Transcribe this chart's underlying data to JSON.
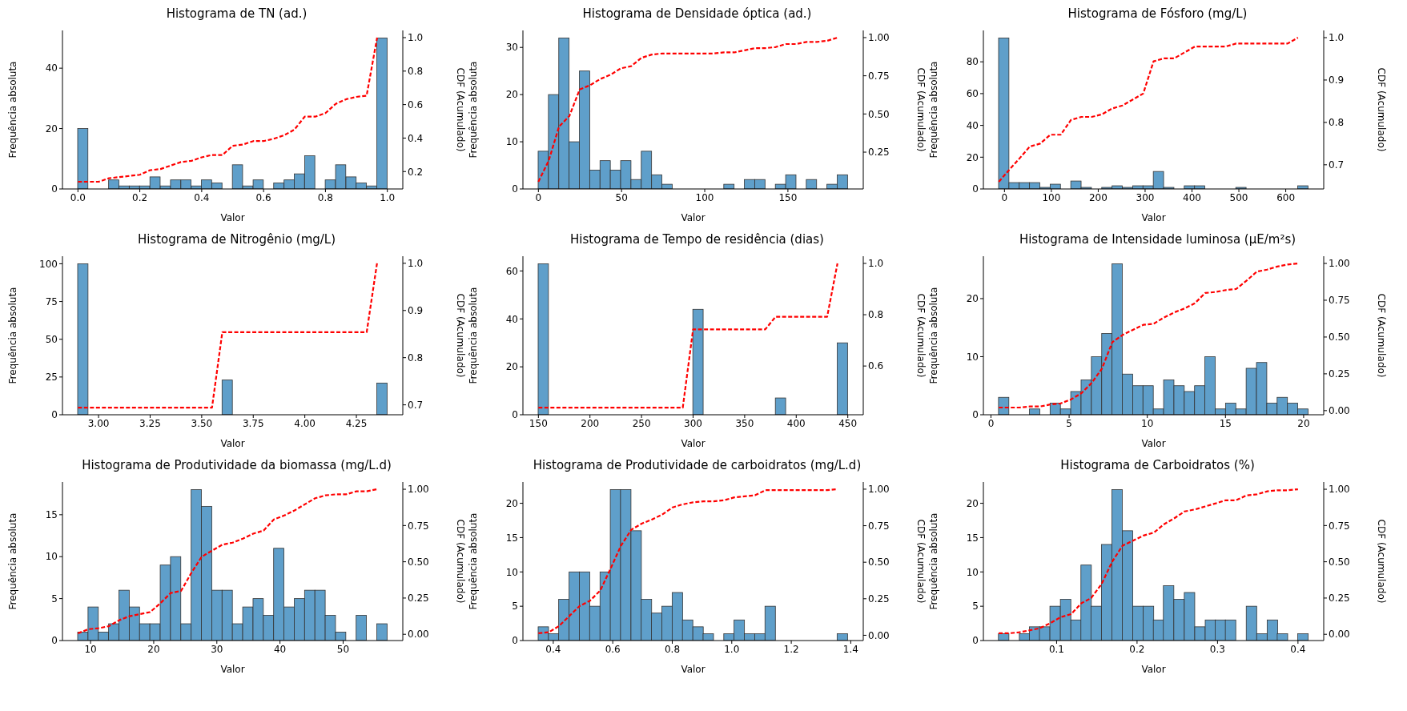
{
  "chart_data": [
    {
      "type": "histogram",
      "title": "Histograma de TN (ad.)",
      "xlabel": "Valor",
      "ylabel": "Frequência absoluta",
      "y2label": "CDF (Acumulado)",
      "color": "#5f9fca",
      "bins": [
        0,
        0.033,
        0.067,
        0.1,
        0.133,
        0.167,
        0.2,
        0.233,
        0.267,
        0.3,
        0.333,
        0.367,
        0.4,
        0.433,
        0.467,
        0.5,
        0.533,
        0.567,
        0.6,
        0.633,
        0.667,
        0.7,
        0.733,
        0.767,
        0.8,
        0.833,
        0.867,
        0.9,
        0.933,
        0.967,
        1
      ],
      "values": [
        20,
        0,
        0,
        3,
        1,
        1,
        1,
        4,
        1,
        3,
        3,
        1,
        3,
        2,
        0,
        8,
        1,
        3,
        0,
        2,
        3,
        5,
        11,
        0,
        3,
        8,
        4,
        2,
        1,
        50
      ],
      "xlim": [
        -0.05,
        1.05
      ],
      "xticks": [
        {
          "value": 0,
          "label": "0.0"
        },
        0.2,
        0.4,
        0.6,
        0.8,
        {
          "value": 1,
          "label": "1.0"
        }
      ],
      "ylim": [
        0,
        52.5
      ],
      "yticks": [
        0,
        20,
        40
      ],
      "y2lim": [
        0.096,
        1.043
      ],
      "y2ticks": [
        0.2,
        0.4,
        0.6,
        0.8,
        {
          "value": 1,
          "label": "1.0"
        }
      ],
      "series": [
        {
          "type": "line",
          "axis": "y2",
          "color": "#ff0000",
          "line_style": "dashed",
          "x": [
            0,
            0.033,
            0.067,
            0.1,
            0.133,
            0.167,
            0.2,
            0.233,
            0.267,
            0.3,
            0.333,
            0.367,
            0.4,
            0.433,
            0.467,
            0.5,
            0.533,
            0.567,
            0.6,
            0.633,
            0.667,
            0.7,
            0.733,
            0.767,
            0.8,
            0.833,
            0.867,
            0.9,
            0.933,
            0.967
          ],
          "values": [
            0.139,
            0.139,
            0.139,
            0.16,
            0.167,
            0.174,
            0.181,
            0.208,
            0.215,
            0.236,
            0.257,
            0.264,
            0.285,
            0.299,
            0.299,
            0.354,
            0.361,
            0.382,
            0.382,
            0.396,
            0.417,
            0.451,
            0.528,
            0.528,
            0.549,
            0.604,
            0.632,
            0.646,
            0.653,
            1
          ]
        }
      ]
    },
    {
      "type": "histogram",
      "title": "Histograma de Densidade óptica (ad.)",
      "xlabel": "Valor",
      "ylabel": "Frequência absoluta",
      "y2label": "CDF (Acumulado)",
      "color": "#5f9fca",
      "bins": [
        0,
        6.2,
        12.4,
        18.6,
        24.8,
        31,
        37.2,
        43.4,
        49.6,
        55.8,
        62,
        68.2,
        74.4,
        80.6,
        86.8,
        93,
        99.2,
        105.4,
        111.6,
        117.8,
        124,
        130.2,
        136.4,
        142.6,
        148.8,
        155,
        161.2,
        167.4,
        173.6,
        179.8,
        186
      ],
      "values": [
        8,
        20,
        32,
        10,
        25,
        4,
        6,
        4,
        6,
        2,
        8,
        3,
        1,
        0,
        0,
        0,
        0,
        0,
        1,
        0,
        2,
        2,
        0,
        1,
        3,
        0,
        2,
        0,
        1,
        3
      ],
      "xlim": [
        -9.3,
        195.3
      ],
      "xticks": [
        0,
        50,
        100,
        150
      ],
      "ylim": [
        0,
        33.6
      ],
      "yticks": [
        0,
        10,
        20,
        30
      ],
      "y2lim": [
        0.009,
        1.047
      ],
      "y2ticks": [
        0.25,
        {
          "value": 0.5,
          "label": "0.50"
        },
        0.75,
        {
          "value": 1,
          "label": "1.00"
        }
      ],
      "series": [
        {
          "type": "line",
          "axis": "y2",
          "color": "#ff0000",
          "line_style": "dashed",
          "x": [
            0,
            6.2,
            12.4,
            18.6,
            24.8,
            31,
            37.2,
            43.4,
            49.6,
            55.8,
            62,
            68.2,
            74.4,
            80.6,
            86.8,
            93,
            99.2,
            105.4,
            111.6,
            117.8,
            124,
            130.2,
            136.4,
            142.6,
            148.8,
            155,
            161.2,
            167.4,
            173.6,
            179.8
          ],
          "values": [
            0.056,
            0.194,
            0.417,
            0.486,
            0.66,
            0.688,
            0.729,
            0.757,
            0.799,
            0.813,
            0.868,
            0.889,
            0.896,
            0.896,
            0.896,
            0.896,
            0.896,
            0.896,
            0.903,
            0.903,
            0.917,
            0.931,
            0.931,
            0.938,
            0.958,
            0.958,
            0.972,
            0.972,
            0.979,
            1
          ]
        }
      ]
    },
    {
      "type": "histogram",
      "title": "Histograma de Fósforo (mg/L)",
      "xlabel": "Valor",
      "ylabel": "Frequência absoluta",
      "y2label": "CDF (Acumulado)",
      "color": "#5f9fca",
      "bins": [
        -12,
        10,
        32,
        54,
        76,
        98,
        120,
        142,
        164,
        186,
        208,
        230,
        252,
        274,
        296,
        318,
        340,
        362,
        384,
        406,
        428,
        450,
        472,
        494,
        516,
        538,
        560,
        582,
        604,
        626,
        648
      ],
      "values": [
        95,
        4,
        4,
        4,
        1,
        3,
        0,
        5,
        1,
        0,
        1,
        2,
        1,
        2,
        2,
        11,
        1,
        0,
        2,
        2,
        0,
        0,
        0,
        1,
        0,
        0,
        0,
        0,
        0,
        2
      ],
      "xlim": [
        -45,
        681
      ],
      "xticks": [
        0,
        100,
        200,
        300,
        400,
        500,
        600
      ],
      "ylim": [
        0,
        99.75
      ],
      "yticks": [
        0,
        20,
        40,
        60,
        80
      ],
      "y2lim": [
        0.643,
        1.017
      ],
      "y2ticks": [
        0.7,
        0.8,
        0.9,
        {
          "value": 1,
          "label": "1.0"
        }
      ],
      "series": [
        {
          "type": "line",
          "axis": "y2",
          "color": "#ff0000",
          "line_style": "dashed",
          "x": [
            -12,
            10,
            32,
            54,
            76,
            98,
            120,
            142,
            164,
            186,
            208,
            230,
            252,
            274,
            296,
            318,
            340,
            362,
            384,
            406,
            428,
            450,
            472,
            494,
            516,
            538,
            560,
            582,
            604,
            626
          ],
          "values": [
            0.66,
            0.688,
            0.715,
            0.743,
            0.75,
            0.771,
            0.771,
            0.806,
            0.813,
            0.813,
            0.819,
            0.833,
            0.84,
            0.854,
            0.868,
            0.944,
            0.951,
            0.951,
            0.965,
            0.979,
            0.979,
            0.979,
            0.979,
            0.986,
            0.986,
            0.986,
            0.986,
            0.986,
            0.986,
            1
          ]
        }
      ]
    },
    {
      "type": "histogram",
      "title": "Histograma de Nitrogênio (mg/L)",
      "xlabel": "Valor",
      "ylabel": "Frequência absoluta",
      "y2label": "CDF (Acumulado)",
      "color": "#5f9fca",
      "bins": [
        2.9,
        2.95,
        3,
        3.05,
        3.1,
        3.15,
        3.2,
        3.25,
        3.3,
        3.35,
        3.4,
        3.45,
        3.5,
        3.55,
        3.6,
        3.65,
        3.7,
        3.75,
        3.8,
        3.85,
        3.9,
        3.95,
        4,
        4.05,
        4.1,
        4.15,
        4.2,
        4.25,
        4.3,
        4.35,
        4.4
      ],
      "values": [
        100,
        0,
        0,
        0,
        0,
        0,
        0,
        0,
        0,
        0,
        0,
        0,
        0,
        0,
        23,
        0,
        0,
        0,
        0,
        0,
        0,
        0,
        0,
        0,
        0,
        0,
        0,
        0,
        0,
        21
      ],
      "xlim": [
        2.825,
        4.475
      ],
      "xticks": [
        {
          "value": 3,
          "label": "3.00"
        },
        3.25,
        {
          "value": 3.5,
          "label": "3.50"
        },
        3.75,
        {
          "value": 4,
          "label": "4.00"
        },
        4.25
      ],
      "ylim": [
        0,
        105
      ],
      "yticks": [
        0,
        25,
        50,
        75,
        100
      ],
      "y2lim": [
        0.679,
        1.015
      ],
      "y2ticks": [
        0.7,
        0.8,
        0.9,
        {
          "value": 1,
          "label": "1.0"
        }
      ],
      "series": [
        {
          "type": "line",
          "axis": "y2",
          "color": "#ff0000",
          "line_style": "dashed",
          "x": [
            2.9,
            2.95,
            3,
            3.05,
            3.1,
            3.15,
            3.2,
            3.25,
            3.3,
            3.35,
            3.4,
            3.45,
            3.5,
            3.55,
            3.6,
            3.65,
            3.7,
            3.75,
            3.8,
            3.85,
            3.9,
            3.95,
            4,
            4.05,
            4.1,
            4.15,
            4.2,
            4.25,
            4.3,
            4.35
          ],
          "values": [
            0.694,
            0.694,
            0.694,
            0.694,
            0.694,
            0.694,
            0.694,
            0.694,
            0.694,
            0.694,
            0.694,
            0.694,
            0.694,
            0.694,
            0.854,
            0.854,
            0.854,
            0.854,
            0.854,
            0.854,
            0.854,
            0.854,
            0.854,
            0.854,
            0.854,
            0.854,
            0.854,
            0.854,
            0.854,
            1
          ]
        }
      ]
    },
    {
      "type": "histogram",
      "title": "Histograma de Tempo de residência (dias)",
      "xlabel": "Valor",
      "ylabel": "Frequência absoluta",
      "y2label": "CDF (Acumulado)",
      "color": "#5f9fca",
      "bins": [
        150,
        160,
        170,
        180,
        190,
        200,
        210,
        220,
        230,
        240,
        250,
        260,
        270,
        280,
        290,
        300,
        310,
        320,
        330,
        340,
        350,
        360,
        370,
        380,
        390,
        400,
        410,
        420,
        430,
        440,
        450
      ],
      "values": [
        63,
        0,
        0,
        0,
        0,
        0,
        0,
        0,
        0,
        0,
        0,
        0,
        0,
        0,
        0,
        44,
        0,
        0,
        0,
        0,
        0,
        0,
        0,
        7,
        0,
        0,
        0,
        0,
        0,
        30
      ],
      "xlim": [
        135,
        465
      ],
      "xticks": [
        150,
        200,
        250,
        300,
        350,
        400,
        450
      ],
      "ylim": [
        0,
        66.15
      ],
      "yticks": [
        0,
        20,
        40,
        60
      ],
      "y2lim": [
        0.41,
        1.028
      ],
      "y2ticks": [
        0.6,
        0.8,
        {
          "value": 1,
          "label": "1.0"
        }
      ],
      "series": [
        {
          "type": "line",
          "axis": "y2",
          "color": "#ff0000",
          "line_style": "dashed",
          "x": [
            150,
            160,
            170,
            180,
            190,
            200,
            210,
            220,
            230,
            240,
            250,
            260,
            270,
            280,
            290,
            300,
            310,
            320,
            330,
            340,
            350,
            360,
            370,
            380,
            390,
            400,
            410,
            420,
            430,
            440
          ],
          "values": [
            0.438,
            0.438,
            0.438,
            0.438,
            0.438,
            0.438,
            0.438,
            0.438,
            0.438,
            0.438,
            0.438,
            0.438,
            0.438,
            0.438,
            0.438,
            0.743,
            0.743,
            0.743,
            0.743,
            0.743,
            0.743,
            0.743,
            0.743,
            0.792,
            0.792,
            0.792,
            0.792,
            0.792,
            0.792,
            1
          ]
        }
      ]
    },
    {
      "type": "histogram",
      "title": "Histograma de Intensidade luminosa (µE/m²s)",
      "xlabel": "Valor",
      "ylabel": "Frequência absoluta",
      "y2label": "CDF (Acumulado)",
      "color": "#5f9fca",
      "bins": [
        0.5,
        1.16,
        1.82,
        2.48,
        3.14,
        3.8,
        4.46,
        5.12,
        5.78,
        6.44,
        7.1,
        7.76,
        8.42,
        9.08,
        9.74,
        10.4,
        11.06,
        11.72,
        12.38,
        13.04,
        13.7,
        14.36,
        15.02,
        15.68,
        16.34,
        17,
        17.66,
        18.32,
        18.98,
        19.64,
        20.3
      ],
      "values": [
        3,
        0,
        0,
        1,
        0,
        2,
        1,
        4,
        6,
        10,
        14,
        26,
        7,
        5,
        5,
        1,
        6,
        5,
        4,
        5,
        10,
        1,
        2,
        1,
        8,
        9,
        2,
        3,
        2,
        1
      ],
      "xlim": [
        -0.485,
        21.285
      ],
      "xticks": [
        0,
        5,
        10,
        15,
        20
      ],
      "ylim": [
        0,
        27.3
      ],
      "yticks": [
        0,
        10,
        20
      ],
      "y2lim": [
        -0.028,
        1.049
      ],
      "y2ticks": [
        {
          "value": 0,
          "label": "0.00"
        },
        0.25,
        {
          "value": 0.5,
          "label": "0.50"
        },
        0.75,
        {
          "value": 1,
          "label": "1.00"
        }
      ],
      "series": [
        {
          "type": "line",
          "axis": "y2",
          "color": "#ff0000",
          "line_style": "dashed",
          "x": [
            0.5,
            1.16,
            1.82,
            2.48,
            3.14,
            3.8,
            4.46,
            5.12,
            5.78,
            6.44,
            7.1,
            7.76,
            8.42,
            9.08,
            9.74,
            10.4,
            11.06,
            11.72,
            12.38,
            13.04,
            13.7,
            14.36,
            15.02,
            15.68,
            16.34,
            17,
            17.66,
            18.32,
            18.98,
            19.64
          ],
          "values": [
            0.021,
            0.021,
            0.021,
            0.028,
            0.028,
            0.042,
            0.049,
            0.076,
            0.118,
            0.188,
            0.285,
            0.465,
            0.514,
            0.549,
            0.583,
            0.59,
            0.632,
            0.667,
            0.694,
            0.729,
            0.799,
            0.806,
            0.819,
            0.826,
            0.882,
            0.944,
            0.958,
            0.979,
            0.993,
            1
          ]
        }
      ]
    },
    {
      "type": "histogram",
      "title": "Histograma de Produtividade da biomassa (mg/L.d)",
      "xlabel": "Valor",
      "ylabel": "Frequência absoluta",
      "y2label": "CDF (Acumulado)",
      "color": "#5f9fca",
      "bins": [
        8,
        9.63,
        11.27,
        12.9,
        14.53,
        16.17,
        17.8,
        19.43,
        21.07,
        22.7,
        24.33,
        25.97,
        27.6,
        29.23,
        30.87,
        32.5,
        34.13,
        35.77,
        37.4,
        39.03,
        40.67,
        42.3,
        43.93,
        45.57,
        47.2,
        48.83,
        50.47,
        52.1,
        53.73,
        55.37,
        57
      ],
      "values": [
        1,
        4,
        1,
        2,
        6,
        4,
        2,
        2,
        9,
        10,
        2,
        18,
        16,
        6,
        6,
        2,
        4,
        5,
        3,
        11,
        4,
        5,
        6,
        6,
        3,
        1,
        0,
        3,
        0,
        2
      ],
      "xlim": [
        5.55,
        59.45
      ],
      "xticks": [
        10,
        20,
        30,
        40,
        50
      ],
      "ylim": [
        0,
        18.9
      ],
      "yticks": [
        0,
        5,
        10,
        15
      ],
      "y2lim": [
        -0.043,
        1.05
      ],
      "y2ticks": [
        {
          "value": 0,
          "label": "0.00"
        },
        0.25,
        {
          "value": 0.5,
          "label": "0.50"
        },
        0.75,
        {
          "value": 1,
          "label": "1.00"
        }
      ],
      "series": [
        {
          "type": "line",
          "axis": "y2",
          "color": "#ff0000",
          "line_style": "dashed",
          "x": [
            8,
            9.63,
            11.27,
            12.9,
            14.53,
            16.17,
            17.8,
            19.43,
            21.07,
            22.7,
            24.33,
            25.97,
            27.6,
            29.23,
            30.87,
            32.5,
            34.13,
            35.77,
            37.4,
            39.03,
            40.67,
            42.3,
            43.93,
            45.57,
            47.2,
            48.83,
            50.47,
            52.1,
            53.73,
            55.37
          ],
          "values": [
            0.007,
            0.035,
            0.042,
            0.056,
            0.097,
            0.125,
            0.139,
            0.153,
            0.215,
            0.285,
            0.299,
            0.424,
            0.535,
            0.576,
            0.618,
            0.632,
            0.66,
            0.694,
            0.715,
            0.792,
            0.819,
            0.854,
            0.896,
            0.938,
            0.958,
            0.965,
            0.965,
            0.986,
            0.986,
            1
          ]
        }
      ]
    },
    {
      "type": "histogram",
      "title": "Histograma de Produtividade de carboidratos (mg/L.d)",
      "xlabel": "Valor",
      "ylabel": "Frequência absoluta",
      "y2label": "CDF (Acumulado)",
      "color": "#5f9fca",
      "bins": [
        0.35,
        0.385,
        0.419,
        0.454,
        0.489,
        0.523,
        0.558,
        0.593,
        0.627,
        0.662,
        0.697,
        0.731,
        0.766,
        0.801,
        0.835,
        0.87,
        0.905,
        0.939,
        0.974,
        1.009,
        1.043,
        1.078,
        1.113,
        1.147,
        1.182,
        1.217,
        1.251,
        1.286,
        1.321,
        1.355,
        1.39
      ],
      "values": [
        2,
        1,
        6,
        10,
        10,
        5,
        10,
        22,
        22,
        16,
        6,
        4,
        5,
        7,
        3,
        2,
        1,
        0,
        1,
        3,
        1,
        1,
        5,
        0,
        0,
        0,
        0,
        0,
        0,
        1
      ],
      "xlim": [
        0.298,
        1.442
      ],
      "xticks": [
        0.4,
        0.6,
        0.8,
        {
          "value": 1,
          "label": "1.0"
        },
        1.2,
        1.4
      ],
      "ylim": [
        0,
        23.1
      ],
      "yticks": [
        0,
        5,
        10,
        15,
        20
      ],
      "y2lim": [
        -0.036,
        1.049
      ],
      "y2ticks": [
        {
          "value": 0,
          "label": "0.00"
        },
        0.25,
        {
          "value": 0.5,
          "label": "0.50"
        },
        0.75,
        {
          "value": 1,
          "label": "1.00"
        }
      ],
      "series": [
        {
          "type": "line",
          "axis": "y2",
          "color": "#ff0000",
          "line_style": "dashed",
          "x": [
            0.35,
            0.385,
            0.419,
            0.454,
            0.489,
            0.523,
            0.558,
            0.593,
            0.627,
            0.662,
            0.697,
            0.731,
            0.766,
            0.801,
            0.835,
            0.87,
            0.905,
            0.939,
            0.974,
            1.009,
            1.043,
            1.078,
            1.113,
            1.147,
            1.182,
            1.217,
            1.251,
            1.286,
            1.321,
            1.355
          ],
          "values": [
            0.014,
            0.021,
            0.063,
            0.132,
            0.201,
            0.236,
            0.306,
            0.458,
            0.611,
            0.722,
            0.764,
            0.792,
            0.826,
            0.875,
            0.896,
            0.91,
            0.917,
            0.917,
            0.924,
            0.944,
            0.951,
            0.958,
            0.993,
            0.993,
            0.993,
            0.993,
            0.993,
            0.993,
            0.993,
            1
          ]
        }
      ]
    },
    {
      "type": "histogram",
      "title": "Histograma de Carboidratos (%)",
      "xlabel": "Valor",
      "ylabel": "Frequência absoluta",
      "y2label": "CDF (Acumulado)",
      "color": "#5f9fca",
      "bins": [
        0.028,
        0.041,
        0.054,
        0.067,
        0.079,
        0.092,
        0.105,
        0.118,
        0.131,
        0.143,
        0.156,
        0.169,
        0.182,
        0.195,
        0.208,
        0.221,
        0.233,
        0.246,
        0.259,
        0.272,
        0.285,
        0.298,
        0.31,
        0.323,
        0.336,
        0.349,
        0.362,
        0.375,
        0.387,
        0.4,
        0.413
      ],
      "values": [
        1,
        0,
        1,
        2,
        2,
        5,
        6,
        3,
        11,
        5,
        14,
        22,
        16,
        5,
        5,
        3,
        8,
        6,
        7,
        2,
        3,
        3,
        3,
        0,
        5,
        1,
        3,
        1,
        0,
        1
      ],
      "xlim": [
        0.009,
        0.432
      ],
      "xticks": [
        0.1,
        0.2,
        0.3,
        0.4
      ],
      "ylim": [
        0,
        23.1
      ],
      "yticks": [
        0,
        5,
        10,
        15,
        20
      ],
      "y2lim": [
        -0.043,
        1.05
      ],
      "y2ticks": [
        {
          "value": 0,
          "label": "0.00"
        },
        0.25,
        {
          "value": 0.5,
          "label": "0.50"
        },
        0.75,
        {
          "value": 1,
          "label": "1.00"
        }
      ],
      "series": [
        {
          "type": "line",
          "axis": "y2",
          "color": "#ff0000",
          "line_style": "dashed",
          "x": [
            0.028,
            0.041,
            0.054,
            0.067,
            0.079,
            0.092,
            0.105,
            0.118,
            0.131,
            0.143,
            0.156,
            0.169,
            0.182,
            0.195,
            0.208,
            0.221,
            0.233,
            0.246,
            0.259,
            0.272,
            0.285,
            0.298,
            0.31,
            0.323,
            0.336,
            0.349,
            0.362,
            0.375,
            0.387,
            0.4
          ],
          "values": [
            0.007,
            0.007,
            0.014,
            0.028,
            0.042,
            0.076,
            0.118,
            0.139,
            0.215,
            0.25,
            0.347,
            0.5,
            0.611,
            0.646,
            0.681,
            0.701,
            0.757,
            0.799,
            0.847,
            0.861,
            0.882,
            0.903,
            0.924,
            0.924,
            0.958,
            0.965,
            0.986,
            0.993,
            0.993,
            1
          ]
        }
      ]
    }
  ]
}
